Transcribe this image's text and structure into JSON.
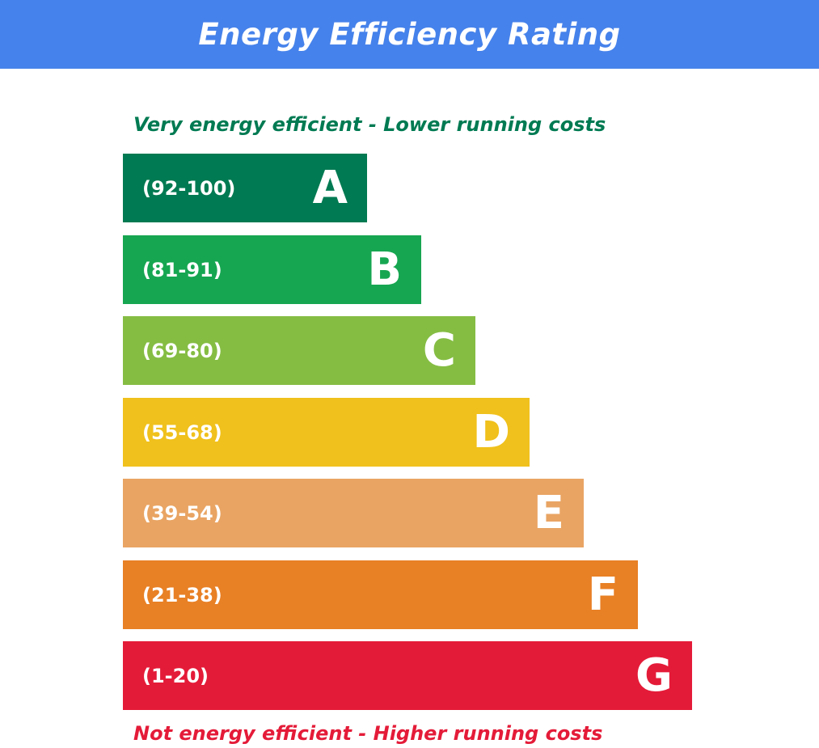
{
  "header": {
    "title": "Energy Efficiency Rating",
    "color": "#4682EB"
  },
  "captions": {
    "top": {
      "text": "Very energy efficient - Lower running costs",
      "color": "#007A52"
    },
    "bottom": {
      "text": "Not energy efficient - Higher running costs",
      "color": "#E41B38"
    }
  },
  "chart_data": {
    "type": "bar",
    "orientation": "horizontal",
    "title": "Energy Efficiency Rating",
    "categories": [
      "A",
      "B",
      "C",
      "D",
      "E",
      "F",
      "G"
    ],
    "series": [
      {
        "ranges": [
          "(92-100)",
          "(81-91)",
          "(69-80)",
          "(55-68)",
          "(39-54)",
          "(21-38)",
          "(1-20)"
        ],
        "colors": [
          "#007A52",
          "#16A651",
          "#85BD43",
          "#F0C11C",
          "#E9A463",
          "#E88025",
          "#E41B38"
        ]
      }
    ],
    "grid": false,
    "legend": "none"
  }
}
